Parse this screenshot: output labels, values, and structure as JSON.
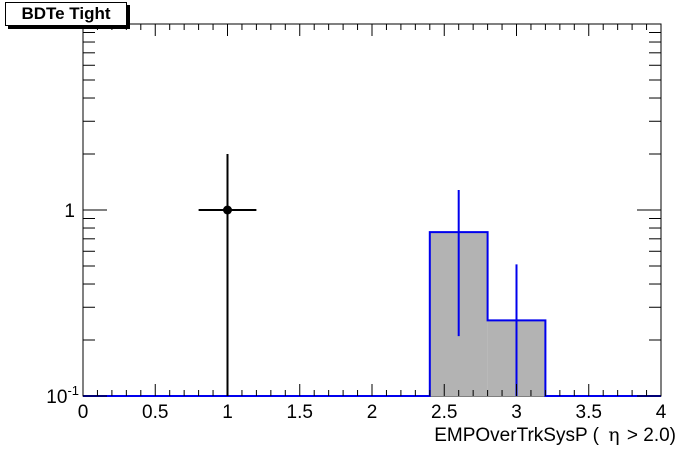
{
  "chart_data": {
    "type": "histogram",
    "title": "BDTe Tight",
    "xlabel": {
      "var": "EMPOverTrkSysP",
      "open": "(",
      "symbol": "η",
      "cut": "> 2.0)"
    },
    "xlim": [
      0,
      4
    ],
    "ylim": [
      0.1,
      10
    ],
    "yscale": "log",
    "x_ticks": [
      "0",
      "0.5",
      "1",
      "1.5",
      "2",
      "2.5",
      "3",
      "3.5",
      "4"
    ],
    "y_ticks": [
      {
        "value": 1,
        "label": "1"
      },
      {
        "value": 0.1,
        "label": "10",
        "exp": "-1"
      }
    ],
    "histogram": {
      "bin_edges": [
        2.4,
        2.8,
        3.2
      ],
      "values": [
        0.76,
        0.255
      ],
      "fill_color": "#b3b3b3",
      "line_color": "#0000ee",
      "baseline": 0.1
    },
    "mc_errors": [
      {
        "x": 2.6,
        "y": 0.76,
        "ylow": 0.21,
        "yhigh": 1.28
      },
      {
        "x": 3.0,
        "y": 0.255,
        "ylow": 0.1,
        "yhigh": 0.51
      }
    ],
    "data_points": [
      {
        "x": 1.0,
        "y": 1.0,
        "xerr": 0.2,
        "ylow": 0.1,
        "yhigh": 2.0
      }
    ],
    "data_color": "#000000",
    "grid": false
  }
}
